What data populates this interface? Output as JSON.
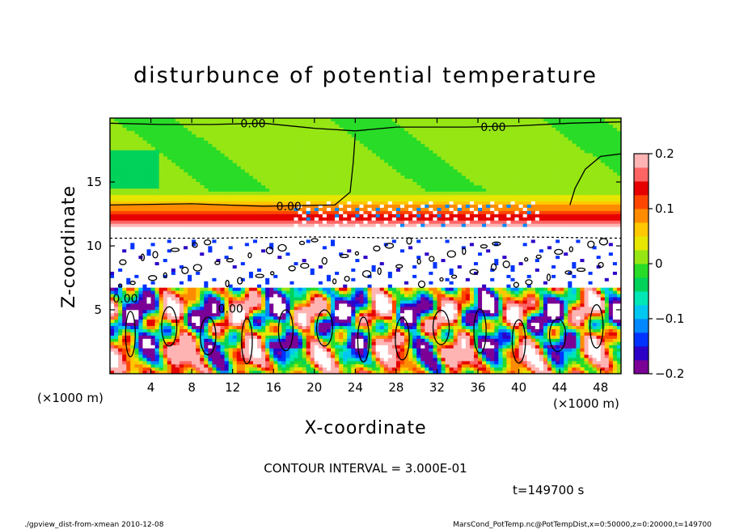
{
  "chart_data": {
    "type": "heatmap",
    "title": "disturbunce of potential temperature",
    "xlabel": "X-coordinate",
    "ylabel": "Z-coordinate",
    "x_unit": "(×1000 m)",
    "y_unit": "(×1000 m)",
    "xlim": [
      0,
      50
    ],
    "ylim": [
      0,
      20
    ],
    "xticks": [
      4,
      8,
      12,
      16,
      20,
      24,
      28,
      32,
      36,
      40,
      44,
      48
    ],
    "yticks": [
      5,
      10,
      15
    ],
    "colorbar": {
      "range": [
        -0.2,
        0.2
      ],
      "ticks": [
        -0.2,
        -0.1,
        0,
        0.1,
        0.2
      ],
      "tick_labels": [
        "−0.2",
        "−0.1",
        "0",
        "0.1",
        "0.2"
      ],
      "colors": [
        "#7a0096",
        "#2d00c8",
        "#0033ff",
        "#0088ff",
        "#00c8f0",
        "#00e6b4",
        "#00d25a",
        "#28dc28",
        "#96e614",
        "#e6e600",
        "#ffc800",
        "#ff8c00",
        "#ff4600",
        "#e60000",
        "#ff6464",
        "#ffb4b4"
      ]
    },
    "contour_labels": [
      {
        "text": "0.00",
        "x": 14.0,
        "z": 19.6
      },
      {
        "text": "0.00",
        "x": 37.5,
        "z": 19.3
      },
      {
        "text": "0.00",
        "x": 17.5,
        "z": 13.1
      },
      {
        "text": "0.00",
        "x": 11.8,
        "z": 5.1
      },
      {
        "text": "0.00",
        "x": 1.5,
        "z": 5.9
      }
    ],
    "contour_interval_text": "CONTOUR INTERVAL = 3.000E-01",
    "time_text": "t=149700 s"
  },
  "footer": {
    "left": "./gpview_dist-from-xmean  2010-12-08",
    "right": "MarsCond_PotTemp.nc@PotTempDist,x=0:50000,z=0:20000,t=149700"
  }
}
